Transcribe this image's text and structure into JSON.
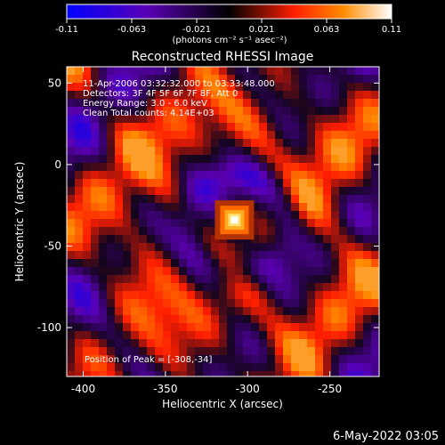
{
  "chart_data": {
    "type": "heatmap",
    "title": "Reconstructed RHESSI Image",
    "xlabel": "Heliocentric X (arcsec)",
    "ylabel": "Heliocentric Y (arcsec)",
    "xlim": [
      -410,
      -220
    ],
    "ylim": [
      -130,
      60
    ],
    "x_ticks": [
      -400,
      -350,
      -300,
      -250
    ],
    "y_ticks": [
      50,
      0,
      -50,
      -100
    ],
    "colorbar": {
      "ticks": [
        "-0.11",
        "-0.063",
        "-0.021",
        "0.021",
        "0.063",
        "0.11"
      ],
      "range": [
        -0.11,
        0.11
      ],
      "unit_label": "(photons cm⁻² s⁻¹ asec⁻²)"
    },
    "info_lines": [
      "11-Apr-2006 03:32:32.000 to 03:33:48.000",
      "Detectors: 3F 4F 5F 6F 7F 8F, Att 0",
      "Energy Range: 3.0 - 6.0 keV",
      "Clean     Total counts: 4.14E+03"
    ],
    "peak_label": "Position of Peak = [-308,-34]",
    "peak": {
      "x": -308,
      "y": -34
    },
    "footer_date": "6-May-2022 03:05"
  }
}
